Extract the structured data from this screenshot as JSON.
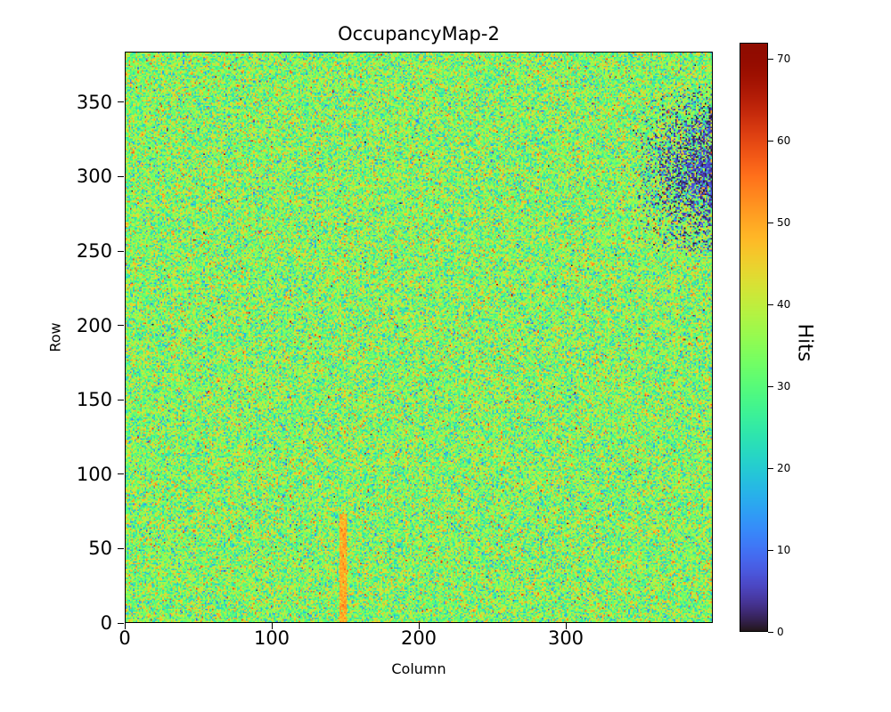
{
  "figure": {
    "background": "#ffffff"
  },
  "chart_data": {
    "type": "heatmap",
    "title": "OccupancyMap-2",
    "xlabel": "Column",
    "ylabel": "Row",
    "colorbar_label": "Hits",
    "n_cols": 400,
    "n_rows": 384,
    "x_range": [
      0,
      400
    ],
    "y_range": [
      0,
      384
    ],
    "vmin": 0,
    "vmax": 72,
    "x_ticks": [
      0,
      100,
      200,
      300
    ],
    "y_ticks": [
      0,
      50,
      100,
      150,
      200,
      250,
      300,
      350
    ],
    "colorbar_ticks": [
      0,
      10,
      20,
      30,
      40,
      50,
      60,
      70
    ],
    "grid": false,
    "colormap": "turbo",
    "colormap_stops": [
      {
        "t": 0.0,
        "color": "#30123b"
      },
      {
        "t": 0.25,
        "color": "#3e9bfe"
      },
      {
        "t": 0.5,
        "color": "#95fb51"
      },
      {
        "t": 0.75,
        "color": "#ff7e1d"
      },
      {
        "t": 1.0,
        "color": "#7a0403"
      }
    ],
    "baseline": {
      "mean": 34,
      "std": 9
    },
    "features": [
      {
        "name": "hot-column",
        "cols": [
          146,
          151
        ],
        "rows": [
          0,
          73
        ],
        "mean": 50,
        "std": 2.5
      },
      {
        "name": "low-occupancy-corner",
        "cols": [
          345,
          400
        ],
        "rows": [
          243,
          365
        ],
        "center_row": 304,
        "max_dropout": 0.8,
        "dropout_value_max": 9
      }
    ],
    "seed": 1234
  }
}
